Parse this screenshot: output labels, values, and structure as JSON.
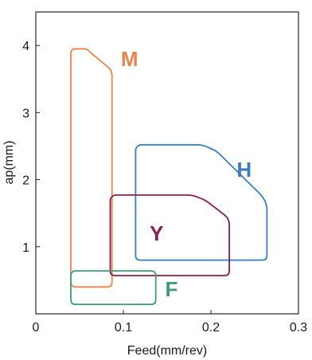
{
  "chart_data": {
    "type": "area",
    "xlabel": "Feed(mm/rev)",
    "ylabel": "ap(mm)",
    "xlim": [
      0,
      0.3
    ],
    "ylim": [
      0,
      4.5
    ],
    "xticks": [
      "0",
      "0.1",
      "0.2",
      "0.3"
    ],
    "xtick_values": [
      0,
      0.1,
      0.2,
      0.3
    ],
    "yticks": [
      "1",
      "2",
      "3",
      "4"
    ],
    "ytick_values": [
      1,
      2,
      3,
      4
    ],
    "grid": false,
    "series": [
      {
        "name": "M",
        "color": "#f0834a",
        "points": [
          [
            0.04,
            0.4
          ],
          [
            0.04,
            3.9
          ],
          [
            0.042,
            3.95
          ],
          [
            0.058,
            3.95
          ],
          [
            0.062,
            3.9
          ],
          [
            0.085,
            3.65
          ],
          [
            0.087,
            3.58
          ],
          [
            0.087,
            0.4
          ]
        ],
        "label_pos": [
          0.107,
          3.8
        ]
      },
      {
        "name": "H",
        "color": "#3a7ec2",
        "points": [
          [
            0.114,
            0.8
          ],
          [
            0.114,
            2.47
          ],
          [
            0.118,
            2.52
          ],
          [
            0.19,
            2.52
          ],
          [
            0.206,
            2.43
          ],
          [
            0.259,
            1.75
          ],
          [
            0.264,
            1.62
          ],
          [
            0.264,
            0.8
          ]
        ],
        "label_pos": [
          0.238,
          2.15
        ]
      },
      {
        "name": "Y",
        "color": "#8b1f50",
        "points": [
          [
            0.085,
            0.57
          ],
          [
            0.085,
            1.72
          ],
          [
            0.089,
            1.77
          ],
          [
            0.178,
            1.77
          ],
          [
            0.193,
            1.7
          ],
          [
            0.218,
            1.45
          ],
          [
            0.221,
            1.37
          ],
          [
            0.221,
            0.57
          ]
        ],
        "label_pos": [
          0.138,
          1.2
        ]
      },
      {
        "name": "F",
        "color": "#3a9e79",
        "points": [
          [
            0.04,
            0.14
          ],
          [
            0.04,
            0.64
          ],
          [
            0.137,
            0.64
          ],
          [
            0.137,
            0.14
          ]
        ],
        "label_pos": [
          0.155,
          0.37
        ]
      }
    ]
  }
}
